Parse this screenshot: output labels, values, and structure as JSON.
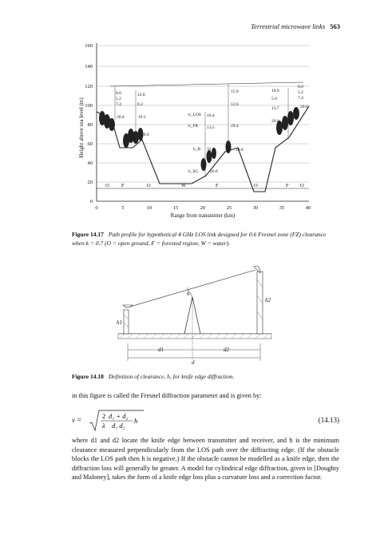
{
  "header": {
    "running_title": "Terrestrial microwave links",
    "page_number": "563"
  },
  "figure1": {
    "caption_label": "Figure 14.17",
    "caption_text": "Path profile for hypothetical 4 GHz LOS link designed for 0.6 Fresnel zone (FZ) clearance when k = 0.7 (O = open ground, F = forested region, W = water).",
    "ylabel": "Height above sea level (m)",
    "xlabel": "Range from transmitter (km)",
    "yticks": [
      "0",
      "20",
      "40",
      "60",
      "80",
      "100",
      "120",
      "140",
      "160"
    ],
    "xticks": [
      "0",
      "5",
      "10",
      "15",
      "20",
      "25",
      "30",
      "35",
      "40"
    ],
    "terrain_labels": [
      "O",
      "F",
      "O",
      "W",
      "F",
      "O",
      "F",
      "O"
    ],
    "annotations": {
      "tx_stack": [
        "8.0",
        "5.2",
        "7.4"
      ],
      "a1": "12.8",
      "a2": "8.2",
      "a3": "20.0",
      "a4": "19.1",
      "a5": "20.0",
      "mid_labels": [
        "h_LOS",
        "h_FR",
        "h_B",
        "h_SG"
      ],
      "mid_vals": [
        "16.4",
        "13.5",
        "31.4",
        "20.0"
      ],
      "b1": "15.9",
      "b2": "12.6",
      "b3": "29.4",
      "b4": "20.0",
      "c1": "10.9",
      "c2": "5.9",
      "c3": "13.7",
      "c4": "20.0",
      "rx_stack": [
        "8.0",
        "5.2",
        "7.4"
      ],
      "rx_tree": "20.0"
    }
  },
  "figure2": {
    "caption_label": "Figure 14.18",
    "caption_text": "Definition of clearance, h, for knife edge diffraction.",
    "labels": {
      "h": "h",
      "h1": "h1",
      "h2": "h2",
      "d1": "d1",
      "d2": "d2",
      "d": "d"
    }
  },
  "para1": "in this figure is called the Fresnel diffraction parameter and is given by:",
  "equation": {
    "lhs": "v =",
    "number": "(14.13)"
  },
  "para2": "where d1 and d2 locate the knife edge between transmitter and receiver, and h is the minimum clearance measured perpendicularly from the LOS path over the diffracting edge. (If the obstacle blocks the LOS path then h is negative.) If the obstacle cannot be modelled as a knife edge, then the diffraction loss will generally be greater. A model for cylindrical edge diffraction, given in [Doughty and Maloney], takes the form of a knife edge loss plus a curvature loss and a correction factor."
}
